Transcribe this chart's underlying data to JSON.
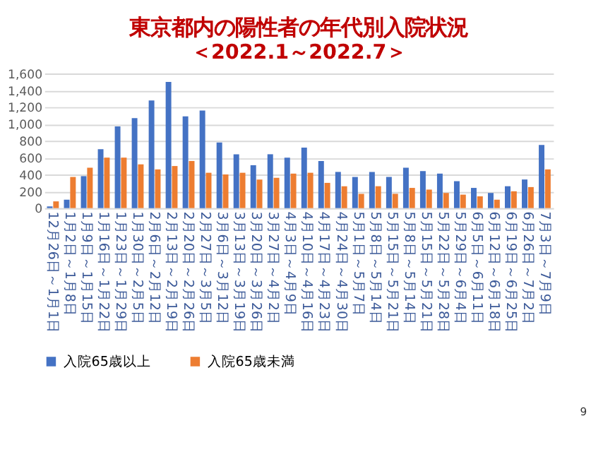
{
  "chart_data": {
    "type": "bar",
    "title": "東京都内の陽性者の年代別入院状況",
    "subtitle": "＜2022.1～2022.7＞",
    "categories": [
      "12月26日～1月1日",
      "1月2日～1月8日",
      "1月9日～1月15日",
      "1月16日～1月22日",
      "1月23日～1月29日",
      "1月30日～2月5日",
      "2月6日～2月12日",
      "2月13日～2月19日",
      "2月20日～2月26日",
      "2月27日～3月5日",
      "3月6日～3月12日",
      "3月13日～3月19日",
      "3月20日～3月26日",
      "3月27日～4月2日",
      "4月3日～4月9日",
      "4月10日～4月16日",
      "4月17日～4月23日",
      "4月24日～4月30日",
      "5月1日～5月7日",
      "5月8日～5月14日",
      "5月15日～5月21日",
      "5月8日～5月14日",
      "5月15日～5月21日",
      "5月22日～5月28日",
      "5月29日～6月4日",
      "6月5日～6月11日",
      "6月12日～6月18日",
      "6月19日～6月25日",
      "6月26日～7月2日",
      "7月3日～7月9日"
    ],
    "series": [
      {
        "name": "入院65歳以上",
        "color": "#4472c4",
        "values": [
          20,
          100,
          380,
          700,
          970,
          1070,
          1280,
          1500,
          1090,
          1160,
          780,
          640,
          510,
          640,
          600,
          720,
          560,
          430,
          370,
          430,
          370,
          480,
          440,
          410,
          320,
          240,
          180,
          260,
          340,
          750
        ]
      },
      {
        "name": "入院65歳未満",
        "color": "#ed7d31",
        "values": [
          80,
          370,
          480,
          600,
          600,
          520,
          460,
          500,
          560,
          420,
          400,
          420,
          340,
          360,
          410,
          420,
          300,
          260,
          170,
          260,
          170,
          240,
          220,
          180,
          160,
          140,
          100,
          200,
          250,
          460
        ]
      }
    ],
    "ylim": [
      0,
      1600
    ],
    "yticks": [
      {
        "value": 0,
        "label": "0"
      },
      {
        "value": 200,
        "label": "200"
      },
      {
        "value": 400,
        "label": "400"
      },
      {
        "value": 600,
        "label": "600"
      },
      {
        "value": 800,
        "label": "800"
      },
      {
        "value": 1000,
        "label": "1,000"
      },
      {
        "value": 1200,
        "label": "1,200"
      },
      {
        "value": 1400,
        "label": "1,400"
      },
      {
        "value": 1600,
        "label": "1,600"
      }
    ],
    "grid": "y",
    "legend": "bottom",
    "annotations": [
      "9"
    ]
  }
}
